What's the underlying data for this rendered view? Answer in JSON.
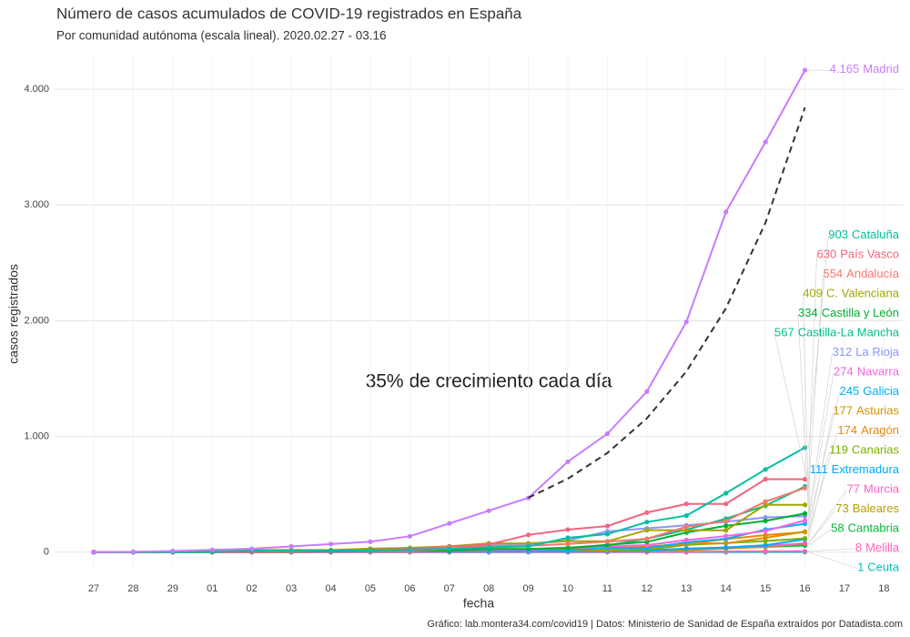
{
  "chart_data": {
    "type": "line",
    "title": "Número de casos acumulados de COVID-19 registrados en España",
    "subtitle": "Por comunidad autónoma (escala lineal). 2020.02.27 - 03.16",
    "x_label": "fecha",
    "y_label": "casos registrados",
    "caption": "Gráfico: lab.montera34.com/covid19 | Datos: Ministerio de Sanidad de España extraídos por Datadista.com",
    "annotation": "35% de crecimiento cada día",
    "categories": [
      "27",
      "28",
      "29",
      "01",
      "02",
      "03",
      "04",
      "05",
      "06",
      "07",
      "08",
      "09",
      "10",
      "11",
      "12",
      "13",
      "14",
      "15",
      "16",
      "17",
      "18"
    ],
    "ylim": [
      -120,
      4300
    ],
    "yticks": [
      0,
      {
        "value": 1000,
        "label": "1.000"
      },
      {
        "value": 2000,
        "label": "2.000"
      },
      {
        "value": 3000,
        "label": "3.000"
      },
      {
        "value": 4000,
        "label": "4.000"
      }
    ],
    "grid": true,
    "trend": {
      "color": "#333333",
      "values": [
        null,
        null,
        null,
        null,
        null,
        null,
        null,
        null,
        null,
        null,
        null,
        470,
        635,
        857,
        1157,
        1562,
        2108,
        2846,
        3842,
        null,
        null
      ]
    },
    "series": [
      {
        "name": "Madrid",
        "color": "#c77cff",
        "value_label": "4.165",
        "values": [
          1,
          3,
          10,
          20,
          29,
          49,
          70,
          90,
          137,
          248,
          358,
          469,
          782,
          1024,
          1388,
          1990,
          2940,
          3544,
          4165,
          null,
          null
        ]
      },
      {
        "name": "Cataluña",
        "color": "#00bfa0",
        "value_label": "903",
        "values": [
          0,
          0,
          1,
          3,
          12,
          15,
          15,
          15,
          21,
          28,
          42,
          49,
          124,
          156,
          260,
          316,
          509,
          715,
          903,
          null,
          null
        ]
      },
      {
        "name": "País Vasco",
        "color": "#f0657d",
        "value_label": "630",
        "values": [
          0,
          0,
          0,
          1,
          2,
          6,
          13,
          17,
          30,
          45,
          66,
          149,
          195,
          225,
          342,
          417,
          417,
          630,
          630,
          null,
          null
        ]
      },
      {
        "name": "Andalucía",
        "color": "#f8766d",
        "value_label": "554",
        "values": [
          0,
          0,
          1,
          1,
          6,
          12,
          13,
          13,
          13,
          27,
          54,
          54,
          71,
          90,
          115,
          219,
          269,
          437,
          554,
          null,
          null
        ]
      },
      {
        "name": "C. Valenciana",
        "color": "#a3a500",
        "value_label": "409",
        "values": [
          1,
          2,
          7,
          15,
          19,
          19,
          19,
          30,
          37,
          50,
          76,
          76,
          94,
          94,
          190,
          190,
          188,
          409,
          409,
          null,
          null
        ]
      },
      {
        "name": "Castilla y León",
        "color": "#00b030",
        "value_label": "334",
        "values": [
          0,
          0,
          0,
          1,
          2,
          3,
          7,
          10,
          10,
          15,
          27,
          27,
          35,
          64,
          88,
          170,
          227,
          270,
          334,
          null,
          null
        ]
      },
      {
        "name": "Castilla-La Mancha",
        "color": "#00c08b",
        "value_label": "567",
        "values": [
          0,
          0,
          0,
          2,
          3,
          6,
          8,
          12,
          12,
          18,
          26,
          26,
          39,
          58,
          115,
          194,
          289,
          401,
          567,
          null,
          null
        ]
      },
      {
        "name": "La Rioja",
        "color": "#8c94fc",
        "value_label": "312",
        "values": [
          0,
          0,
          0,
          1,
          3,
          5,
          7,
          11,
          30,
          49,
          70,
          70,
          102,
          179,
          205,
          232,
          262,
          300,
          312,
          null,
          null
        ]
      },
      {
        "name": "Navarra",
        "color": "#f564e3",
        "value_label": "274",
        "values": [
          0,
          0,
          0,
          0,
          1,
          2,
          2,
          5,
          7,
          15,
          20,
          20,
          36,
          50,
          61,
          104,
          139,
          183,
          274,
          null,
          null
        ]
      },
      {
        "name": "Galicia",
        "color": "#00b0f6",
        "value_label": "245",
        "values": [
          0,
          0,
          0,
          1,
          2,
          3,
          4,
          5,
          6,
          7,
          8,
          8,
          15,
          35,
          35,
          85,
          115,
          195,
          245,
          null,
          null
        ]
      },
      {
        "name": "Asturias",
        "color": "#d39200",
        "value_label": "177",
        "values": [
          0,
          0,
          0,
          0,
          1,
          2,
          3,
          5,
          6,
          7,
          11,
          11,
          17,
          19,
          36,
          76,
          76,
          124,
          177,
          null,
          null
        ]
      },
      {
        "name": "Aragón",
        "color": "#e68613",
        "value_label": "174",
        "values": [
          0,
          0,
          0,
          1,
          2,
          3,
          4,
          5,
          7,
          8,
          13,
          13,
          25,
          35,
          48,
          71,
          112,
          147,
          174,
          null,
          null
        ]
      },
      {
        "name": "Canarias",
        "color": "#7cae00",
        "value_label": "119",
        "values": [
          1,
          2,
          6,
          6,
          7,
          8,
          8,
          8,
          10,
          11,
          11,
          11,
          13,
          16,
          20,
          63,
          79,
          96,
          119,
          null,
          null
        ]
      },
      {
        "name": "Extremadura",
        "color": "#00a9ff",
        "value_label": "111",
        "values": [
          0,
          0,
          0,
          0,
          1,
          3,
          3,
          5,
          6,
          6,
          7,
          7,
          7,
          9,
          12,
          31,
          40,
          60,
          111,
          null,
          null
        ]
      },
      {
        "name": "Murcia",
        "color": "#ff61c3",
        "value_label": "77",
        "values": [
          0,
          0,
          0,
          0,
          0,
          0,
          1,
          1,
          1,
          2,
          4,
          4,
          7,
          11,
          15,
          29,
          38,
          53,
          77,
          null,
          null
        ]
      },
      {
        "name": "Baleares",
        "color": "#b79f00",
        "value_label": "73",
        "values": [
          0,
          0,
          1,
          2,
          2,
          2,
          2,
          3,
          5,
          5,
          6,
          6,
          11,
          13,
          12,
          16,
          30,
          45,
          73,
          null,
          null
        ]
      },
      {
        "name": "Cantabria",
        "color": "#00ba38",
        "value_label": "58",
        "values": [
          0,
          0,
          1,
          1,
          1,
          1,
          2,
          6,
          10,
          10,
          12,
          12,
          12,
          12,
          15,
          19,
          40,
          45,
          58,
          null,
          null
        ]
      },
      {
        "name": "Melilla",
        "color": "#ff62bc",
        "value_label": "8",
        "values": [
          0,
          0,
          0,
          0,
          0,
          0,
          0,
          0,
          0,
          0,
          1,
          1,
          1,
          1,
          1,
          2,
          6,
          7,
          8,
          null,
          null
        ]
      },
      {
        "name": "Ceuta",
        "color": "#00bfc4",
        "value_label": "1",
        "values": [
          0,
          0,
          0,
          0,
          0,
          0,
          0,
          0,
          0,
          0,
          0,
          0,
          0,
          0,
          0,
          0,
          0,
          1,
          1,
          null,
          null
        ]
      }
    ]
  }
}
